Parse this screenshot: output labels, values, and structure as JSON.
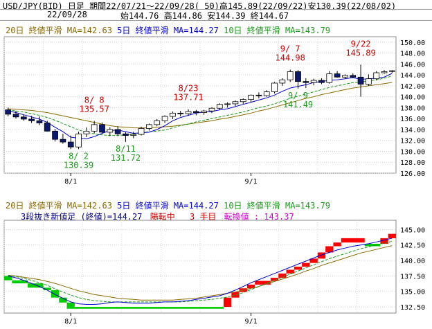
{
  "header": {
    "line1": "USD/JPY(BID) 日足 期間22/07/21～22/09/28( 50)高145.89(22/09/22)安130.39(22/08/02)",
    "date": "22/09/28",
    "ohlc": "始144.76 高144.86 安144.39 終144.67"
  },
  "colors": {
    "up_candle": "#ffffff",
    "down_candle": "#0b1a6e",
    "ma5": "#0000cc",
    "ma10": "#1a9a1a",
    "ma20": "#8a6a00",
    "high_label": "#cc0000",
    "low_label": "#1a9a1a",
    "brick_up": "#ff0000",
    "brick_down": "#00cc00",
    "magenta": "#cc00cc"
  },
  "chart_data": [
    {
      "type": "candlestick",
      "title": "USD/JPY(BID) 日足",
      "legend": [
        {
          "name": "20日 終値平滑 MA=142.63",
          "color": "#8a6a00"
        },
        {
          "name": "5日 終値平滑 MA=144.27",
          "color": "#0000cc"
        },
        {
          "name": "10日 終値平滑 MA=143.79",
          "color": "#1a9a1a"
        }
      ],
      "ylim": [
        126,
        151
      ],
      "yticks": [
        "126.00",
        "128.00",
        "130.00",
        "132.00",
        "134.00",
        "136.00",
        "138.00",
        "140.00",
        "142.00",
        "144.00",
        "146.00",
        "148.00",
        "150.00"
      ],
      "xticks": [
        {
          "label": "8/1",
          "index": 8
        },
        {
          "label": "9/1",
          "index": 31
        }
      ],
      "ohlc": [
        [
          137.6,
          138.0,
          136.4,
          136.8
        ],
        [
          136.8,
          137.4,
          136.0,
          136.3
        ],
        [
          136.3,
          136.7,
          135.6,
          135.9
        ],
        [
          135.9,
          136.5,
          135.2,
          135.6
        ],
        [
          135.6,
          136.4,
          134.8,
          135.2
        ],
        [
          135.2,
          135.6,
          133.6,
          133.7
        ],
        [
          133.7,
          134.1,
          131.8,
          132.2
        ],
        [
          132.2,
          133.2,
          131.4,
          131.7
        ],
        [
          131.7,
          132.9,
          130.4,
          130.8
        ],
        [
          130.8,
          133.6,
          130.39,
          133.2
        ],
        [
          133.2,
          134.4,
          132.6,
          133.7
        ],
        [
          133.7,
          135.57,
          133.3,
          134.9
        ],
        [
          134.9,
          135.3,
          133.2,
          133.5
        ],
        [
          133.5,
          134.4,
          132.8,
          134.0
        ],
        [
          134.0,
          134.6,
          132.8,
          133.2
        ],
        [
          133.2,
          133.5,
          131.72,
          132.9
        ],
        [
          132.9,
          133.6,
          132.4,
          133.1
        ],
        [
          133.1,
          134.5,
          132.9,
          134.2
        ],
        [
          134.2,
          135.1,
          133.8,
          134.9
        ],
        [
          134.9,
          135.9,
          134.6,
          135.6
        ],
        [
          135.6,
          136.6,
          135.2,
          136.4
        ],
        [
          136.4,
          137.3,
          135.9,
          137.0
        ],
        [
          137.0,
          137.4,
          136.4,
          136.9
        ],
        [
          136.9,
          137.71,
          136.5,
          137.3
        ],
        [
          137.3,
          137.6,
          136.6,
          137.1
        ],
        [
          137.1,
          137.6,
          136.7,
          137.4
        ],
        [
          137.4,
          138.1,
          137.0,
          137.9
        ],
        [
          137.9,
          138.8,
          137.6,
          138.6
        ],
        [
          138.6,
          139.0,
          138.0,
          138.7
        ],
        [
          138.7,
          139.3,
          138.3,
          139.1
        ],
        [
          139.1,
          139.7,
          138.7,
          139.5
        ],
        [
          139.5,
          140.4,
          139.0,
          140.3
        ],
        [
          140.3,
          140.8,
          139.7,
          140.2
        ],
        [
          140.2,
          141.2,
          140.0,
          140.9
        ],
        [
          140.9,
          142.7,
          140.6,
          142.5
        ],
        [
          142.5,
          143.4,
          142.0,
          143.1
        ],
        [
          143.1,
          144.98,
          142.7,
          144.6
        ],
        [
          144.6,
          144.9,
          141.49,
          142.8
        ],
        [
          142.8,
          143.4,
          141.6,
          142.6
        ],
        [
          142.6,
          143.3,
          142.1,
          143.0
        ],
        [
          143.0,
          143.4,
          142.3,
          142.6
        ],
        [
          142.6,
          144.7,
          142.4,
          144.2
        ],
        [
          144.2,
          144.7,
          143.5,
          143.6
        ],
        [
          143.6,
          144.1,
          143.3,
          143.9
        ],
        [
          143.9,
          144.3,
          143.4,
          143.6
        ],
        [
          143.6,
          145.89,
          140.0,
          142.3
        ],
        [
          142.3,
          144.1,
          142.0,
          143.3
        ],
        [
          143.3,
          144.7,
          143.0,
          144.4
        ],
        [
          144.4,
          144.9,
          144.2,
          144.6
        ],
        [
          144.76,
          144.86,
          144.39,
          144.67
        ]
      ],
      "ma5": [
        137.4,
        137.1,
        136.7,
        136.3,
        135.9,
        135.3,
        134.4,
        133.6,
        132.6,
        132.4,
        132.3,
        132.7,
        133.3,
        133.8,
        133.9,
        133.6,
        133.3,
        133.4,
        133.5,
        134.0,
        134.7,
        135.6,
        136.2,
        136.6,
        137.0,
        137.2,
        137.3,
        137.6,
        137.8,
        138.2,
        138.6,
        139.0,
        139.4,
        139.8,
        140.3,
        141.0,
        141.6,
        141.9,
        142.2,
        142.6,
        142.8,
        143.0,
        143.1,
        143.3,
        143.5,
        143.2,
        143.3,
        143.4,
        143.6,
        144.27
      ],
      "ma10": [
        137.6,
        137.4,
        137.2,
        136.9,
        136.6,
        136.2,
        135.7,
        135.1,
        134.5,
        133.9,
        133.5,
        133.2,
        133.0,
        132.9,
        132.9,
        133.0,
        133.2,
        133.4,
        133.6,
        133.7,
        133.9,
        134.3,
        134.7,
        135.0,
        135.4,
        135.7,
        136.0,
        136.3,
        136.6,
        136.9,
        137.2,
        137.6,
        138.0,
        138.3,
        138.7,
        139.2,
        139.7,
        140.1,
        140.5,
        140.9,
        141.3,
        141.7,
        142.0,
        142.3,
        142.6,
        142.7,
        142.9,
        143.1,
        143.4,
        143.79
      ],
      "ma20": [
        137.8,
        137.7,
        137.6,
        137.5,
        137.3,
        137.1,
        136.8,
        136.5,
        136.2,
        135.9,
        135.6,
        135.3,
        135.0,
        134.7,
        134.5,
        134.4,
        134.3,
        134.3,
        134.3,
        134.4,
        134.5,
        134.6,
        134.8,
        135.0,
        135.2,
        135.4,
        135.6,
        135.9,
        136.1,
        136.4,
        136.7,
        137.0,
        137.4,
        137.7,
        138.1,
        138.5,
        138.9,
        139.3,
        139.7,
        140.0,
        140.4,
        140.7,
        141.0,
        141.3,
        141.6,
        141.8,
        142.0,
        142.2,
        142.4,
        142.63
      ],
      "annotations": [
        {
          "label": "8/ 2\n130.39",
          "index": 9,
          "kind": "low",
          "value": 130.39
        },
        {
          "label": "8/ 8\n135.57",
          "index": 11,
          "kind": "high",
          "value": 135.57
        },
        {
          "label": "8/11\n131.72",
          "index": 15,
          "kind": "low",
          "value": 131.72
        },
        {
          "label": "8/23\n137.71",
          "index": 23,
          "kind": "high",
          "value": 137.71
        },
        {
          "label": "9/ 7\n144.98",
          "index": 36,
          "kind": "high",
          "value": 144.98
        },
        {
          "label": "9/ 9\n141.49",
          "index": 37,
          "kind": "low",
          "value": 141.49
        },
        {
          "label": "9/22\n145.89",
          "index": 45,
          "kind": "high",
          "value": 145.89
        }
      ]
    },
    {
      "type": "three-line-break",
      "legend": [
        {
          "name": "20日 終値平滑 MA=142.63",
          "color": "#8a6a00"
        },
        {
          "name": "5日 終値平滑 MA=144.27",
          "color": "#0000cc"
        },
        {
          "name": "10日 終値平滑 MA=143.79",
          "color": "#1a9a1a"
        }
      ],
      "info": {
        "left": "3段抜き新値足 (終値)=144.27",
        "status": "陽転中",
        "count": "3 手目",
        "reversal": "転換値 : 143.37"
      },
      "ylim": [
        131.5,
        146.5
      ],
      "yticks": [
        "132.50",
        "135.00",
        "137.50",
        "140.00",
        "142.50",
        "145.00"
      ],
      "xticks": [
        {
          "label": "8/1",
          "index": 8
        },
        {
          "label": "9/1",
          "index": 31
        }
      ],
      "bricks": [
        {
          "dir": "down",
          "lo": 136.8,
          "hi": 137.5,
          "start": 0,
          "end": 1
        },
        {
          "dir": "down",
          "lo": 136.3,
          "hi": 136.8,
          "start": 1,
          "end": 3
        },
        {
          "dir": "down",
          "lo": 135.6,
          "hi": 136.3,
          "start": 3,
          "end": 5
        },
        {
          "dir": "down",
          "lo": 135.2,
          "hi": 135.6,
          "start": 5,
          "end": 6
        },
        {
          "dir": "down",
          "lo": 134.0,
          "hi": 135.2,
          "start": 6,
          "end": 7
        },
        {
          "dir": "down",
          "lo": 133.2,
          "hi": 134.0,
          "start": 7,
          "end": 8
        },
        {
          "dir": "down",
          "lo": 132.2,
          "hi": 133.2,
          "start": 8,
          "end": 9
        },
        {
          "dir": "down",
          "lo": 132.2,
          "hi": 132.5,
          "start": 9,
          "end": 28
        },
        {
          "dir": "up",
          "lo": 132.5,
          "hi": 134.0,
          "start": 28,
          "end": 29
        },
        {
          "dir": "up",
          "lo": 134.0,
          "hi": 134.9,
          "start": 29,
          "end": 30
        },
        {
          "dir": "up",
          "lo": 134.9,
          "hi": 135.5,
          "start": 30,
          "end": 31
        },
        {
          "dir": "up",
          "lo": 135.5,
          "hi": 136.1,
          "start": 31,
          "end": 32
        },
        {
          "dir": "up",
          "lo": 136.1,
          "hi": 136.7,
          "start": 32,
          "end": 34
        },
        {
          "dir": "up",
          "lo": 136.7,
          "hi": 137.2,
          "start": 34,
          "end": 35
        },
        {
          "dir": "up",
          "lo": 137.2,
          "hi": 137.9,
          "start": 35,
          "end": 36
        },
        {
          "dir": "up",
          "lo": 137.9,
          "hi": 138.5,
          "start": 36,
          "end": 37
        },
        {
          "dir": "up",
          "lo": 138.5,
          "hi": 139.0,
          "start": 37,
          "end": 38
        },
        {
          "dir": "up",
          "lo": 139.0,
          "hi": 139.6,
          "start": 38,
          "end": 39
        },
        {
          "dir": "up",
          "lo": 139.6,
          "hi": 140.3,
          "start": 39,
          "end": 40
        },
        {
          "dir": "up",
          "lo": 140.3,
          "hi": 141.3,
          "start": 40,
          "end": 41
        },
        {
          "dir": "up",
          "lo": 141.3,
          "hi": 142.3,
          "start": 41,
          "end": 42
        },
        {
          "dir": "up",
          "lo": 142.3,
          "hi": 142.9,
          "start": 42,
          "end": 43
        },
        {
          "dir": "up",
          "lo": 142.9,
          "hi": 143.6,
          "start": 43,
          "end": 46
        },
        {
          "dir": "down",
          "lo": 142.3,
          "hi": 142.7,
          "start": 46,
          "end": 48
        },
        {
          "dir": "up",
          "lo": 142.7,
          "hi": 143.6,
          "start": 48,
          "end": 49
        },
        {
          "dir": "up",
          "lo": 143.6,
          "hi": 144.3,
          "start": 49,
          "end": 50
        }
      ],
      "ma5": [
        137.5,
        137.2,
        136.8,
        136.3,
        135.8,
        135.2,
        134.5,
        133.9,
        133.3,
        133.0,
        132.9,
        132.9,
        133.0,
        133.2,
        133.3,
        133.2,
        133.1,
        133.1,
        133.1,
        133.2,
        133.3,
        133.3,
        133.4,
        133.5,
        133.7,
        133.9,
        134.1,
        134.3,
        134.7,
        135.2,
        135.8,
        136.4,
        136.9,
        137.4,
        137.9,
        138.4,
        138.9,
        139.4,
        139.9,
        140.4,
        140.9,
        141.3,
        141.7,
        142.0,
        142.3,
        142.5,
        142.7,
        143.0,
        143.3,
        143.6
      ],
      "ma10": [
        137.6,
        137.4,
        137.1,
        136.8,
        136.4,
        136.0,
        135.4,
        134.9,
        134.4,
        134.0,
        133.7,
        133.5,
        133.4,
        133.3,
        133.3,
        133.3,
        133.3,
        133.3,
        133.3,
        133.3,
        133.3,
        133.3,
        133.3,
        133.4,
        133.5,
        133.6,
        133.7,
        133.9,
        134.1,
        134.4,
        134.8,
        135.3,
        135.8,
        136.3,
        136.8,
        137.3,
        137.8,
        138.3,
        138.8,
        139.3,
        139.8,
        140.3,
        140.7,
        141.1,
        141.5,
        141.9,
        142.2,
        142.5,
        142.8,
        143.1
      ],
      "ma20": [
        137.6,
        137.5,
        137.3,
        137.1,
        136.9,
        136.6,
        136.3,
        135.9,
        135.5,
        135.1,
        134.8,
        134.5,
        134.3,
        134.1,
        133.9,
        133.8,
        133.7,
        133.6,
        133.6,
        133.6,
        133.6,
        133.6,
        133.7,
        133.8,
        133.9,
        134.1,
        134.3,
        134.5,
        134.7,
        134.9,
        135.2,
        135.5,
        135.8,
        136.2,
        136.6,
        137.0,
        137.4,
        137.8,
        138.3,
        138.7,
        139.2,
        139.6,
        140.0,
        140.4,
        140.8,
        141.2,
        141.5,
        141.8,
        142.1,
        142.4
      ]
    }
  ]
}
